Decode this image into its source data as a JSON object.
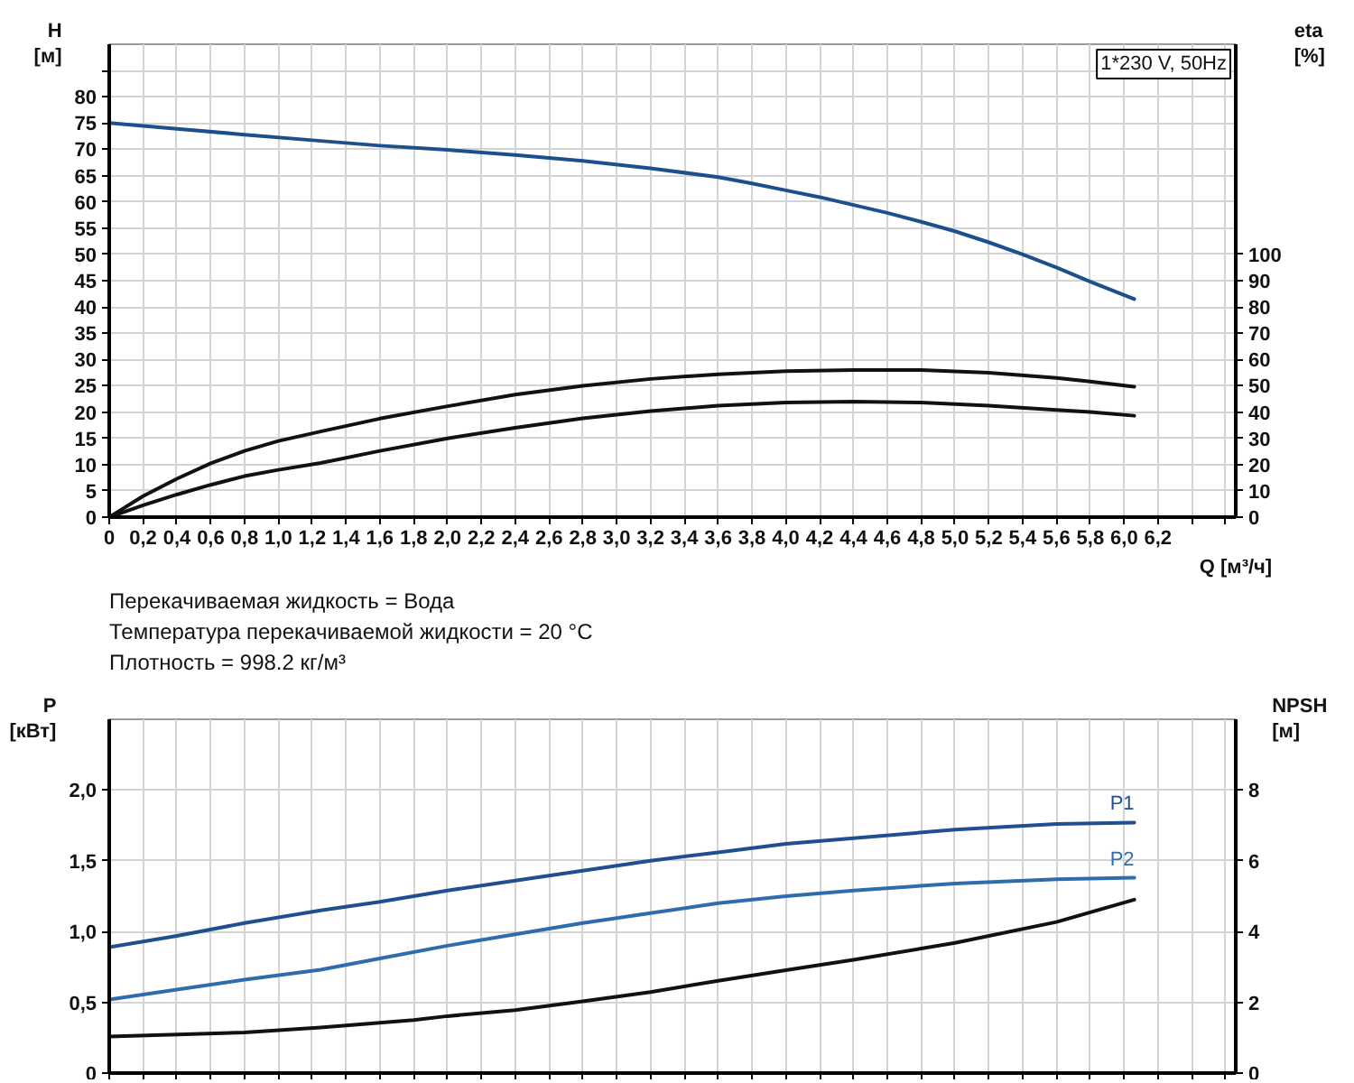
{
  "chart_data": [
    {
      "type": "line",
      "title": "1*230 V, 50Hz",
      "xlabel": "Q [м³/ч]",
      "ylabel": "H [м]",
      "y2label": "eta [%]",
      "annotations": [
        "Перекачиваемая жидкость = Вода",
        "Температура перекачиваемой жидкости = 20 °C",
        "Плотность = 998.2 кг/м³"
      ],
      "xlim": [
        0,
        6.66
      ],
      "ylim": [
        0,
        90
      ],
      "y2lim": [
        0,
        180
      ],
      "xticks": [
        {
          "value": 0,
          "label": "0"
        },
        {
          "value": 0.2,
          "label": "0,2"
        },
        {
          "value": 0.4,
          "label": "0,4"
        },
        {
          "value": 0.6,
          "label": "0,6"
        },
        {
          "value": 0.8,
          "label": "0,8"
        },
        {
          "value": 1.0,
          "label": "1,0"
        },
        {
          "value": 1.2,
          "label": "1,2"
        },
        {
          "value": 1.4,
          "label": "1,4"
        },
        {
          "value": 1.6,
          "label": "1,6"
        },
        {
          "value": 1.8,
          "label": "1,8"
        },
        {
          "value": 2.0,
          "label": "2,0"
        },
        {
          "value": 2.2,
          "label": "2,2"
        },
        {
          "value": 2.4,
          "label": "2,4"
        },
        {
          "value": 2.6,
          "label": "2,6"
        },
        {
          "value": 2.8,
          "label": "2,8"
        },
        {
          "value": 3.0,
          "label": "3,0"
        },
        {
          "value": 3.2,
          "label": "3,2"
        },
        {
          "value": 3.4,
          "label": "3,4"
        },
        {
          "value": 3.6,
          "label": "3,6"
        },
        {
          "value": 3.8,
          "label": "3,8"
        },
        {
          "value": 4.0,
          "label": "4,0"
        },
        {
          "value": 4.2,
          "label": "4,2"
        },
        {
          "value": 4.4,
          "label": "4,4"
        },
        {
          "value": 4.6,
          "label": "4,6"
        },
        {
          "value": 4.8,
          "label": "4,8"
        },
        {
          "value": 5.0,
          "label": "5,0"
        },
        {
          "value": 5.2,
          "label": "5,2"
        },
        {
          "value": 5.4,
          "label": "5,4"
        },
        {
          "value": 5.6,
          "label": "5,6"
        },
        {
          "value": 5.8,
          "label": "5,8"
        },
        {
          "value": 6.0,
          "label": "6,0"
        },
        {
          "value": 6.2,
          "label": "6,2"
        },
        {
          "value": 6.4,
          "label": null
        },
        {
          "value": 6.6,
          "label": null
        }
      ],
      "yticks": [
        0,
        5,
        10,
        15,
        20,
        25,
        30,
        35,
        40,
        45,
        50,
        55,
        60,
        65,
        70,
        75,
        80,
        {
          "value": 85,
          "label": null
        }
      ],
      "y2ticks": [
        0,
        10,
        20,
        30,
        40,
        50,
        60,
        70,
        80,
        90,
        100
      ],
      "grid": true,
      "line_style": "solid",
      "series": [
        {
          "color": "#1c4f8c",
          "x": [
            0,
            0.4,
            0.8,
            1.25,
            1.6,
            2.0,
            2.4,
            2.8,
            3.2,
            3.6,
            3.8,
            4.0,
            4.2,
            4.4,
            4.6,
            4.8,
            5.0,
            5.2,
            5.4,
            5.6,
            5.8,
            6.06
          ],
          "values": [
            75,
            73.9,
            72.8,
            71.6,
            70.7,
            69.9,
            68.9,
            67.8,
            66.4,
            64.7,
            63.5,
            62.2,
            60.9,
            59.4,
            57.9,
            56.2,
            54.4,
            52.3,
            50.0,
            47.5,
            44.8,
            41.5
          ]
        },
        {
          "color": "#111111",
          "axis": "y2",
          "x": [
            0,
            0.2,
            0.4,
            0.6,
            0.8,
            1.0,
            1.25,
            1.6,
            2.0,
            2.4,
            2.8,
            3.2,
            3.6,
            4.0,
            4.4,
            4.8,
            5.2,
            5.6,
            5.8,
            6.06
          ],
          "values": [
            0,
            8,
            14.6,
            20.5,
            25.2,
            29,
            32.6,
            37.5,
            42.2,
            46.6,
            50,
            52.6,
            54.4,
            55.6,
            56,
            56,
            55,
            53,
            51.6,
            49.6
          ]
        },
        {
          "color": "#111111",
          "axis": "y2",
          "x": [
            0,
            0.2,
            0.4,
            0.6,
            0.8,
            1.0,
            1.25,
            1.6,
            2.0,
            2.4,
            2.8,
            3.2,
            3.6,
            4.0,
            4.4,
            4.8,
            5.2,
            5.6,
            5.8,
            6.06
          ],
          "values": [
            0,
            4.5,
            8.6,
            12.3,
            15.6,
            18,
            20.6,
            25.2,
            30,
            34,
            37.6,
            40.4,
            42.4,
            43.6,
            44,
            43.6,
            42.4,
            40.8,
            40,
            38.6
          ]
        }
      ]
    },
    {
      "type": "line",
      "ylabel": "P [кВт]",
      "y2label": "NPSH [м]",
      "xlim": [
        0,
        6.66
      ],
      "ylim": [
        0,
        2.5
      ],
      "y2lim": [
        0,
        10
      ],
      "xticks": [
        0,
        0.2,
        0.4,
        0.6,
        0.8,
        1.0,
        1.2,
        1.4,
        1.6,
        1.8,
        2.0,
        2.2,
        2.4,
        2.6,
        2.8,
        3.0,
        3.2,
        3.4,
        3.6,
        3.8,
        4.0,
        4.2,
        4.4,
        4.6,
        4.8,
        5.0,
        5.2,
        5.4,
        5.6,
        5.8,
        6.0,
        6.2,
        6.4,
        6.6
      ],
      "yticks": [
        {
          "value": 0,
          "label": "0"
        },
        {
          "value": 0.5,
          "label": "0,5"
        },
        {
          "value": 1.0,
          "label": "1,0"
        },
        {
          "value": 1.5,
          "label": "1,5"
        },
        {
          "value": 2.0,
          "label": "2,0"
        }
      ],
      "y2ticks": [
        0,
        2,
        4,
        6,
        8
      ],
      "tick_labels": "y",
      "grid": true,
      "line_style": "solid",
      "series": [
        {
          "name": "P1",
          "color": "#1f4f8f",
          "x": [
            0,
            0.4,
            0.8,
            1.25,
            1.6,
            2.0,
            2.4,
            2.8,
            3.2,
            3.6,
            4.0,
            4.4,
            5.0,
            5.6,
            6.06
          ],
          "values": [
            0.89,
            0.97,
            1.06,
            1.15,
            1.21,
            1.29,
            1.36,
            1.43,
            1.5,
            1.56,
            1.62,
            1.66,
            1.72,
            1.76,
            1.77
          ]
        },
        {
          "name": "P2",
          "color": "#2e6cae",
          "x": [
            0,
            0.4,
            0.8,
            1.25,
            1.6,
            2.0,
            2.4,
            2.8,
            3.2,
            3.6,
            4.0,
            4.4,
            5.0,
            5.6,
            6.06
          ],
          "values": [
            0.52,
            0.59,
            0.66,
            0.73,
            0.81,
            0.9,
            0.98,
            1.06,
            1.13,
            1.2,
            1.25,
            1.29,
            1.34,
            1.37,
            1.38
          ]
        },
        {
          "color": "#111111",
          "axis": "y2",
          "x": [
            0,
            0.8,
            1.25,
            1.8,
            2.0,
            2.4,
            2.8,
            3.2,
            3.6,
            4.0,
            4.4,
            5.0,
            5.6,
            6.06
          ],
          "values": [
            1.03,
            1.15,
            1.29,
            1.5,
            1.61,
            1.78,
            2.03,
            2.29,
            2.61,
            2.91,
            3.2,
            3.68,
            4.27,
            4.9
          ]
        }
      ]
    }
  ]
}
